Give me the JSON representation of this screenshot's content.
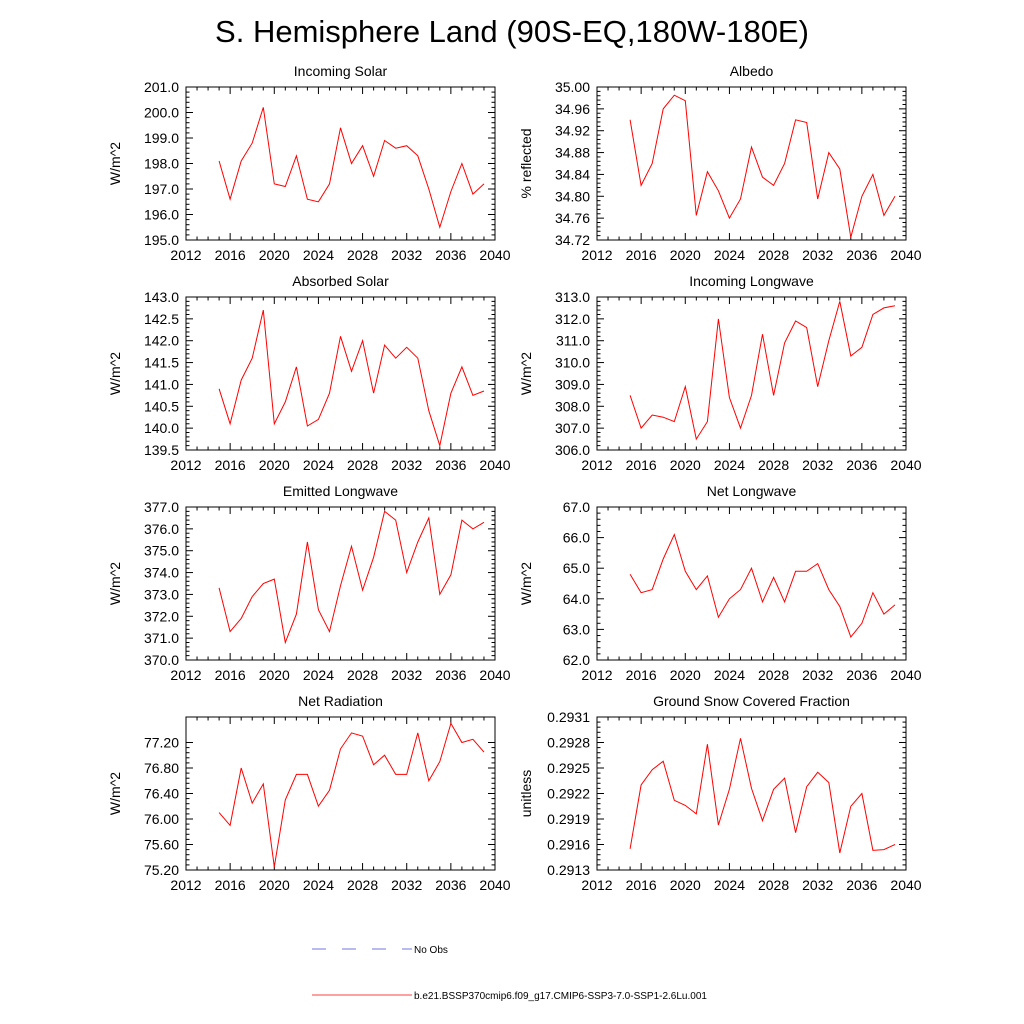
{
  "title": "S. Hemisphere Land (90S-EQ,180W-180E)",
  "colors": {
    "model_line": "#ff0000",
    "obs_line": "#4a4adf",
    "axis": "#000000"
  },
  "legend": {
    "obs_label": "No Obs",
    "model_label": "b.e21.BSSP370cmip6.f09_g17.CMIP6-SSP3-7.0-SSP1-2.6Lu.001"
  },
  "chart_data": [
    {
      "type": "line",
      "title": "Incoming Solar",
      "ylabel": "W/m^2",
      "xlim": [
        2012,
        2040
      ],
      "ylim": [
        195.0,
        201.0
      ],
      "xticks": [
        "2012",
        "2016",
        "2020",
        "2024",
        "2028",
        "2032",
        "2036",
        "2040"
      ],
      "yticks": [
        "195.0",
        "196.0",
        "197.0",
        "198.0",
        "199.0",
        "200.0",
        "201.0"
      ],
      "series": [
        {
          "x": [
            2015,
            2016,
            2017,
            2018,
            2019,
            2020,
            2021,
            2022,
            2023,
            2024,
            2025,
            2026,
            2027,
            2028,
            2029,
            2030,
            2031,
            2032,
            2033,
            2034,
            2035,
            2036,
            2037,
            2038,
            2039
          ],
          "values": [
            198.1,
            196.6,
            198.1,
            198.8,
            200.2,
            197.2,
            197.1,
            198.3,
            196.6,
            196.5,
            197.2,
            199.4,
            198.0,
            198.7,
            197.5,
            198.9,
            198.6,
            198.7,
            198.3,
            197.0,
            195.5,
            196.9,
            198.0,
            196.8,
            197.2
          ]
        }
      ]
    },
    {
      "type": "line",
      "title": "Albedo",
      "ylabel": "% reflected",
      "xlim": [
        2012,
        2040
      ],
      "ylim": [
        34.72,
        35.0
      ],
      "xticks": [
        "2012",
        "2016",
        "2020",
        "2024",
        "2028",
        "2032",
        "2036",
        "2040"
      ],
      "yticks": [
        "34.72",
        "34.76",
        "34.80",
        "34.84",
        "34.88",
        "34.92",
        "34.96",
        "35.00"
      ],
      "series": [
        {
          "x": [
            2015,
            2016,
            2017,
            2018,
            2019,
            2020,
            2021,
            2022,
            2023,
            2024,
            2025,
            2026,
            2027,
            2028,
            2029,
            2030,
            2031,
            2032,
            2033,
            2034,
            2035,
            2036,
            2037,
            2038,
            2039
          ],
          "values": [
            34.94,
            34.82,
            34.86,
            34.96,
            34.985,
            34.975,
            34.765,
            34.845,
            34.81,
            34.76,
            34.795,
            34.89,
            34.835,
            34.82,
            34.86,
            34.94,
            34.935,
            34.795,
            34.88,
            34.85,
            34.725,
            34.8,
            34.84,
            34.765,
            34.8
          ]
        }
      ]
    },
    {
      "type": "line",
      "title": "Absorbed Solar",
      "ylabel": "W/m^2",
      "xlim": [
        2012,
        2040
      ],
      "ylim": [
        139.5,
        143.0
      ],
      "xticks": [
        "2012",
        "2016",
        "2020",
        "2024",
        "2028",
        "2032",
        "2036",
        "2040"
      ],
      "yticks": [
        "139.5",
        "140.0",
        "140.5",
        "141.0",
        "141.5",
        "142.0",
        "142.5",
        "143.0"
      ],
      "series": [
        {
          "x": [
            2015,
            2016,
            2017,
            2018,
            2019,
            2020,
            2021,
            2022,
            2023,
            2024,
            2025,
            2026,
            2027,
            2028,
            2029,
            2030,
            2031,
            2032,
            2033,
            2034,
            2035,
            2036,
            2037,
            2038,
            2039
          ],
          "values": [
            140.9,
            140.1,
            141.1,
            141.6,
            142.7,
            140.1,
            140.6,
            141.4,
            140.05,
            140.2,
            140.8,
            142.1,
            141.3,
            142.0,
            140.8,
            141.9,
            141.6,
            141.85,
            141.6,
            140.4,
            139.6,
            140.8,
            141.4,
            140.75,
            140.85
          ]
        }
      ]
    },
    {
      "type": "line",
      "title": "Incoming Longwave",
      "ylabel": "W/m^2",
      "xlim": [
        2012,
        2040
      ],
      "ylim": [
        306.0,
        313.0
      ],
      "xticks": [
        "2012",
        "2016",
        "2020",
        "2024",
        "2028",
        "2032",
        "2036",
        "2040"
      ],
      "yticks": [
        "306.0",
        "307.0",
        "308.0",
        "309.0",
        "310.0",
        "311.0",
        "312.0",
        "313.0"
      ],
      "series": [
        {
          "x": [
            2015,
            2016,
            2017,
            2018,
            2019,
            2020,
            2021,
            2022,
            2023,
            2024,
            2025,
            2026,
            2027,
            2028,
            2029,
            2030,
            2031,
            2032,
            2033,
            2034,
            2035,
            2036,
            2037,
            2038,
            2039
          ],
          "values": [
            308.5,
            307.0,
            307.6,
            307.5,
            307.3,
            308.9,
            306.5,
            307.3,
            312.0,
            308.4,
            307.0,
            308.5,
            311.3,
            308.5,
            310.9,
            311.9,
            311.6,
            308.9,
            311.0,
            312.8,
            310.3,
            310.7,
            312.2,
            312.5,
            312.6
          ]
        }
      ]
    },
    {
      "type": "line",
      "title": "Emitted Longwave",
      "ylabel": "W/m^2",
      "xlim": [
        2012,
        2040
      ],
      "ylim": [
        370.0,
        377.0
      ],
      "xticks": [
        "2012",
        "2016",
        "2020",
        "2024",
        "2028",
        "2032",
        "2036",
        "2040"
      ],
      "yticks": [
        "370.0",
        "371.0",
        "372.0",
        "373.0",
        "374.0",
        "375.0",
        "376.0",
        "377.0"
      ],
      "series": [
        {
          "x": [
            2015,
            2016,
            2017,
            2018,
            2019,
            2020,
            2021,
            2022,
            2023,
            2024,
            2025,
            2026,
            2027,
            2028,
            2029,
            2030,
            2031,
            2032,
            2033,
            2034,
            2035,
            2036,
            2037,
            2038,
            2039
          ],
          "values": [
            373.3,
            371.3,
            371.9,
            372.9,
            373.5,
            373.7,
            370.8,
            372.1,
            375.4,
            372.3,
            371.3,
            373.4,
            375.2,
            373.2,
            374.7,
            376.8,
            376.4,
            374.0,
            375.4,
            376.5,
            373.0,
            373.9,
            376.4,
            376.0,
            376.3
          ]
        }
      ]
    },
    {
      "type": "line",
      "title": "Net Longwave",
      "ylabel": "W/m^2",
      "xlim": [
        2012,
        2040
      ],
      "ylim": [
        62.0,
        67.0
      ],
      "xticks": [
        "2012",
        "2016",
        "2020",
        "2024",
        "2028",
        "2032",
        "2036",
        "2040"
      ],
      "yticks": [
        "62.0",
        "63.0",
        "64.0",
        "65.0",
        "66.0",
        "67.0"
      ],
      "series": [
        {
          "x": [
            2015,
            2016,
            2017,
            2018,
            2019,
            2020,
            2021,
            2022,
            2023,
            2024,
            2025,
            2026,
            2027,
            2028,
            2029,
            2030,
            2031,
            2032,
            2033,
            2034,
            2035,
            2036,
            2037,
            2038,
            2039
          ],
          "values": [
            64.8,
            64.2,
            64.3,
            65.3,
            66.1,
            64.9,
            64.3,
            64.75,
            63.4,
            64.0,
            64.3,
            65.0,
            63.9,
            64.7,
            63.9,
            64.9,
            64.9,
            65.15,
            64.3,
            63.75,
            62.75,
            63.2,
            64.2,
            63.5,
            63.8
          ]
        }
      ]
    },
    {
      "type": "line",
      "title": "Net Radiation",
      "ylabel": "W/m^2",
      "xlim": [
        2012,
        2040
      ],
      "ylim": [
        75.2,
        77.6
      ],
      "xticks": [
        "2012",
        "2016",
        "2020",
        "2024",
        "2028",
        "2032",
        "2036",
        "2040"
      ],
      "yticks": [
        "75.20",
        "75.60",
        "76.00",
        "76.40",
        "76.80",
        "77.20"
      ],
      "series": [
        {
          "x": [
            2015,
            2016,
            2017,
            2018,
            2019,
            2020,
            2021,
            2022,
            2023,
            2024,
            2025,
            2026,
            2027,
            2028,
            2029,
            2030,
            2031,
            2032,
            2033,
            2034,
            2035,
            2036,
            2037,
            2038,
            2039
          ],
          "values": [
            76.1,
            75.9,
            76.8,
            76.25,
            76.55,
            75.25,
            76.3,
            76.7,
            76.7,
            76.2,
            76.45,
            77.1,
            77.35,
            77.3,
            76.85,
            77.0,
            76.7,
            76.7,
            77.35,
            76.6,
            76.9,
            77.5,
            77.2,
            77.25,
            77.05
          ]
        }
      ]
    },
    {
      "type": "line",
      "title": "Ground Snow Covered Fraction",
      "ylabel": "unitless",
      "xlim": [
        2012,
        2040
      ],
      "ylim": [
        0.2913,
        0.2931
      ],
      "xticks": [
        "2012",
        "2016",
        "2020",
        "2024",
        "2028",
        "2032",
        "2036",
        "2040"
      ],
      "yticks": [
        "0.2913",
        "0.2916",
        "0.2919",
        "0.2922",
        "0.2925",
        "0.2928",
        "0.2931"
      ],
      "series": [
        {
          "x": [
            2015,
            2016,
            2017,
            2018,
            2019,
            2020,
            2021,
            2022,
            2023,
            2024,
            2025,
            2026,
            2027,
            2028,
            2029,
            2030,
            2031,
            2032,
            2033,
            2034,
            2035,
            2036,
            2037,
            2038,
            2039
          ],
          "values": [
            0.29155,
            0.2923,
            0.29248,
            0.29258,
            0.29212,
            0.29206,
            0.29196,
            0.29278,
            0.29183,
            0.29225,
            0.29285,
            0.29226,
            0.29188,
            0.29225,
            0.29238,
            0.29174,
            0.29228,
            0.29245,
            0.29233,
            0.2915,
            0.29205,
            0.2922,
            0.29153,
            0.29154,
            0.2916
          ]
        }
      ]
    }
  ]
}
